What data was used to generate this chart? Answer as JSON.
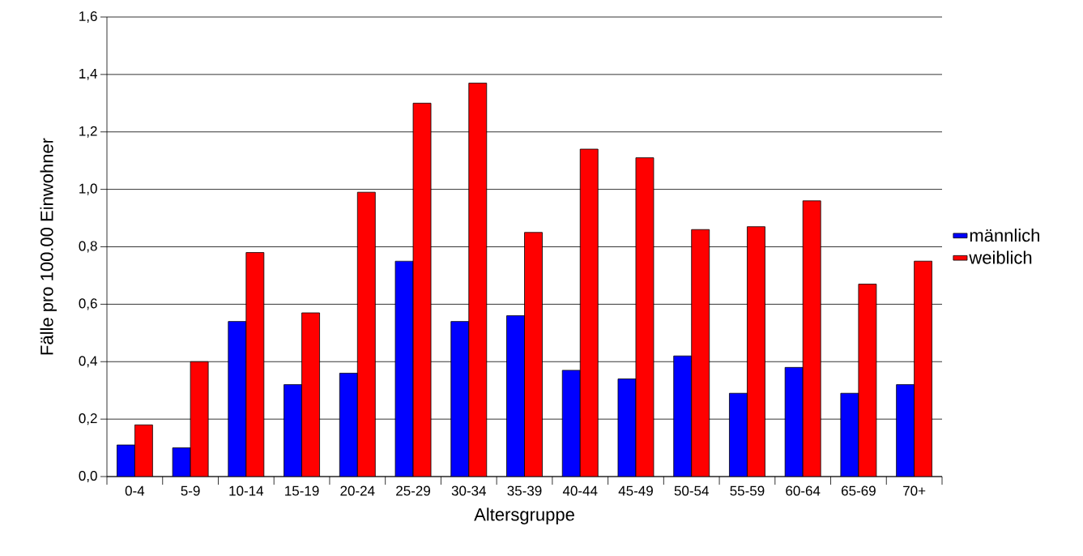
{
  "chart_data": {
    "type": "bar",
    "xlabel": "Altersgruppe",
    "ylabel": "Fälle pro 100.00 Einwohner",
    "categories": [
      "0-4",
      "5-9",
      "10-14",
      "15-19",
      "20-24",
      "25-29",
      "30-34",
      "35-39",
      "40-44",
      "45-49",
      "50-54",
      "55-59",
      "60-64",
      "65-69",
      "70+"
    ],
    "series": [
      {
        "name": "männlich",
        "color": "#0000ff",
        "values": [
          0.11,
          0.1,
          0.54,
          0.32,
          0.36,
          0.75,
          0.54,
          0.56,
          0.37,
          0.34,
          0.42,
          0.29,
          0.38,
          0.29,
          0.32
        ]
      },
      {
        "name": "weiblich",
        "color": "#ff0000",
        "values": [
          0.18,
          0.4,
          0.78,
          0.57,
          0.99,
          1.3,
          1.37,
          0.85,
          1.14,
          1.11,
          0.86,
          0.87,
          0.96,
          0.67,
          0.75
        ]
      }
    ],
    "ylim": [
      0,
      1.6
    ],
    "yticks": [
      {
        "value": 0,
        "label": "0,0"
      },
      {
        "value": 0.2,
        "label": "0,2"
      },
      {
        "value": 0.4,
        "label": "0,4"
      },
      {
        "value": 0.6,
        "label": "0,6"
      },
      {
        "value": 0.8,
        "label": "0,8"
      },
      {
        "value": 1.0,
        "label": "1,0"
      },
      {
        "value": 1.2,
        "label": "1,2"
      },
      {
        "value": 1.4,
        "label": "1,4"
      },
      {
        "value": 1.6,
        "label": "1,6"
      }
    ],
    "grid": "y",
    "legend": "right"
  }
}
